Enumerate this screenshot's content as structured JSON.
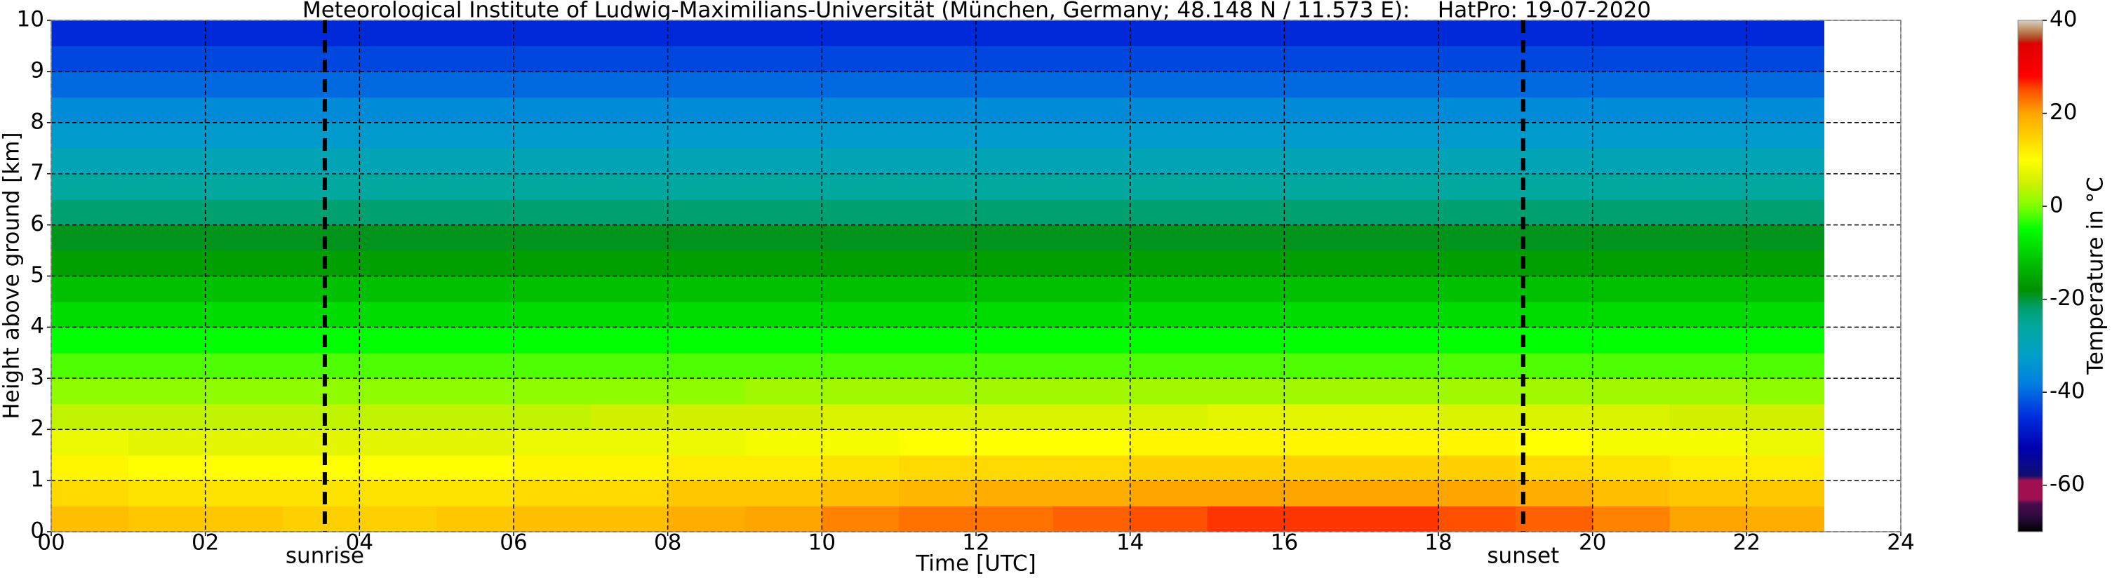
{
  "chart_data": {
    "type": "heatmap",
    "title": "Meteorological Institute of Ludwig-Maximilians-Universität (München, Germany; 48.148 N / 11.573 E):    HatPro: 19-07-2020",
    "x_label": "Time [UTC]",
    "y_label": "Height above ground [km]",
    "colorbar_label": "Temperature in °C",
    "xlim": [
      0,
      24
    ],
    "ylim": [
      0,
      10
    ],
    "xticks": [
      {
        "value": 0,
        "label": "00"
      },
      {
        "value": 2,
        "label": "02"
      },
      {
        "value": 4,
        "label": "04"
      },
      {
        "value": 6,
        "label": "06"
      },
      {
        "value": 8,
        "label": "08"
      },
      10,
      12,
      14,
      16,
      18,
      20,
      22,
      24
    ],
    "yticks": [
      0,
      1,
      2,
      3,
      4,
      5,
      6,
      7,
      8,
      9,
      10
    ],
    "clim": [
      -70,
      40
    ],
    "cticks": [
      -60,
      -40,
      -20,
      0,
      20,
      40
    ],
    "grid": true,
    "annotations": [
      {
        "text": "sunrise",
        "x": 3.55
      },
      {
        "text": "sunset",
        "x": 19.1
      }
    ],
    "xbins": [
      0,
      1,
      2,
      3,
      4,
      5,
      6,
      7,
      8,
      9,
      10,
      11,
      12,
      13,
      14,
      15,
      16,
      17,
      18,
      19,
      20,
      21,
      22,
      23
    ],
    "ybins": [
      0,
      0.5,
      1,
      1.5,
      2,
      2.5,
      3,
      3.5,
      4,
      4.5,
      5,
      5.5,
      6,
      6.5,
      7,
      7.5,
      8,
      8.5,
      9,
      9.5,
      10
    ],
    "z": [
      [
        17,
        16,
        16,
        15,
        15,
        16,
        17,
        17,
        19,
        20,
        22,
        23,
        23,
        24,
        25,
        26,
        26,
        26,
        25,
        24,
        22,
        20,
        19
      ],
      [
        14,
        13,
        13,
        13,
        13,
        13,
        14,
        14,
        16,
        16,
        17,
        18,
        19,
        19,
        20,
        20,
        20,
        20,
        20,
        19,
        17,
        16,
        16
      ],
      [
        11,
        10,
        10,
        10,
        10,
        10,
        11,
        11,
        12,
        12,
        13,
        14,
        14,
        14,
        15,
        15,
        15,
        15,
        15,
        14,
        13,
        12,
        12
      ],
      [
        8,
        7,
        7,
        7,
        7,
        7,
        8,
        8,
        8,
        9,
        9,
        10,
        10,
        10,
        11,
        11,
        11,
        11,
        11,
        10,
        9,
        9,
        8
      ],
      [
        4,
        4,
        4,
        4,
        4,
        4,
        4,
        5,
        5,
        5,
        6,
        6,
        6,
        6,
        6,
        7,
        7,
        7,
        6,
        6,
        6,
        5,
        5
      ],
      [
        1,
        1,
        1,
        1,
        1,
        1,
        1,
        1,
        1,
        2,
        2,
        2,
        2,
        2,
        2,
        2,
        2,
        2,
        2,
        2,
        2,
        2,
        1
      ],
      [
        -2,
        -2,
        -2,
        -2,
        -2,
        -2,
        -2,
        -2,
        -2,
        -2,
        -2,
        -2,
        -2,
        -2,
        -2,
        -2,
        -2,
        -2,
        -2,
        -2,
        -2,
        -2,
        -2
      ],
      [
        -5,
        -5,
        -5,
        -5,
        -5,
        -5,
        -5,
        -5,
        -5,
        -5,
        -5,
        -5,
        -5,
        -5,
        -5,
        -5,
        -5,
        -5,
        -5,
        -5,
        -5,
        -5,
        -5
      ],
      [
        -9,
        -9,
        -9,
        -9,
        -9,
        -9,
        -9,
        -9,
        -9,
        -9,
        -9,
        -9,
        -9,
        -9,
        -9,
        -9,
        -9,
        -9,
        -9,
        -9,
        -9,
        -9,
        -9
      ],
      [
        -12,
        -12,
        -12,
        -12,
        -12,
        -12,
        -12,
        -12,
        -12,
        -12,
        -12,
        -12,
        -12,
        -12,
        -12,
        -12,
        -12,
        -12,
        -12,
        -12,
        -12,
        -12,
        -12
      ],
      [
        -16,
        -16,
        -16,
        -16,
        -16,
        -16,
        -16,
        -16,
        -16,
        -16,
        -16,
        -16,
        -16,
        -16,
        -16,
        -16,
        -16,
        -16,
        -16,
        -16,
        -16,
        -16,
        -16
      ],
      [
        -19,
        -19,
        -19,
        -19,
        -19,
        -19,
        -19,
        -19,
        -19,
        -19,
        -19,
        -19,
        -19,
        -19,
        -19,
        -19,
        -19,
        -19,
        -19,
        -19,
        -19,
        -19,
        -19
      ],
      [
        -22,
        -22,
        -22,
        -22,
        -22,
        -22,
        -22,
        -22,
        -22,
        -22,
        -22,
        -22,
        -22,
        -22,
        -22,
        -22,
        -22,
        -22,
        -22,
        -22,
        -22,
        -22,
        -22
      ],
      [
        -26,
        -26,
        -26,
        -26,
        -26,
        -26,
        -26,
        -26,
        -26,
        -26,
        -26,
        -26,
        -26,
        -26,
        -26,
        -26,
        -26,
        -26,
        -26,
        -26,
        -26,
        -26,
        -26
      ],
      [
        -29,
        -29,
        -29,
        -29,
        -29,
        -29,
        -29,
        -29,
        -29,
        -29,
        -29,
        -29,
        -29,
        -29,
        -29,
        -29,
        -29,
        -29,
        -29,
        -29,
        -29,
        -29,
        -29
      ],
      [
        -33,
        -33,
        -33,
        -33,
        -33,
        -33,
        -33,
        -33,
        -33,
        -33,
        -33,
        -33,
        -33,
        -33,
        -33,
        -33,
        -33,
        -33,
        -33,
        -33,
        -33,
        -33,
        -33
      ],
      [
        -36,
        -36,
        -36,
        -36,
        -36,
        -36,
        -36,
        -36,
        -36,
        -36,
        -36,
        -36,
        -36,
        -36,
        -36,
        -36,
        -36,
        -36,
        -36,
        -36,
        -36,
        -36,
        -36
      ],
      [
        -40,
        -40,
        -40,
        -40,
        -40,
        -40,
        -40,
        -40,
        -40,
        -40,
        -40,
        -40,
        -40,
        -40,
        -40,
        -40,
        -40,
        -40,
        -40,
        -40,
        -40,
        -40,
        -40
      ],
      [
        -43,
        -43,
        -43,
        -43,
        -43,
        -43,
        -43,
        -43,
        -43,
        -43,
        -43,
        -43,
        -43,
        -43,
        -43,
        -43,
        -43,
        -43,
        -43,
        -43,
        -43,
        -43,
        -43
      ],
      [
        -46,
        -46,
        -46,
        -46,
        -46,
        -46,
        -46,
        -46,
        -46,
        -46,
        -46,
        -46,
        -46,
        -46,
        -46,
        -46,
        -46,
        -46,
        -46,
        -46,
        -46,
        -46,
        -46
      ]
    ],
    "colorscale": [
      [
        -70,
        "#000000"
      ],
      [
        -67,
        "#2a0a3a"
      ],
      [
        -64,
        "#4a0a50"
      ],
      [
        -63,
        "#a01050"
      ],
      [
        -59,
        "#a01050"
      ],
      [
        -58,
        "#101070"
      ],
      [
        -52,
        "#0000b0"
      ],
      [
        -45,
        "#0030e0"
      ],
      [
        -38,
        "#0080e0"
      ],
      [
        -32,
        "#00a0c8"
      ],
      [
        -26,
        "#00a8a0"
      ],
      [
        -22,
        "#00a070"
      ],
      [
        -18,
        "#009000"
      ],
      [
        -12,
        "#00c000"
      ],
      [
        -5,
        "#00ff00"
      ],
      [
        0,
        "#80ff00"
      ],
      [
        5,
        "#d0f000"
      ],
      [
        10,
        "#ffff00"
      ],
      [
        15,
        "#ffd000"
      ],
      [
        20,
        "#ffa500"
      ],
      [
        25,
        "#ff5000"
      ],
      [
        28,
        "#ff0000"
      ],
      [
        35,
        "#e00000"
      ],
      [
        36,
        "#b04020"
      ],
      [
        38,
        "#c09060"
      ],
      [
        40,
        "#d8d0c8"
      ]
    ]
  }
}
